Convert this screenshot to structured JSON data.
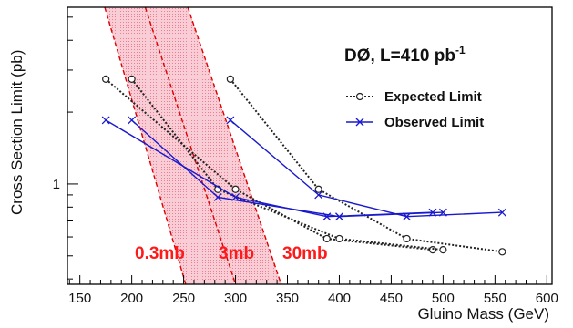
{
  "colors": {
    "band_fill": "#f6b8c4",
    "band_edge": "#e00000",
    "expected": "#222222",
    "observed": "#1a1acc",
    "band_label": "#ff1a1a",
    "axis": "#000000"
  },
  "chart_data": {
    "type": "line",
    "title_main": "DØ, L=410 pb",
    "title_sup": "-1",
    "xlabel": "Gluino Mass (GeV)",
    "ylabel": "Cross Section Limit (pb)",
    "xlim": [
      138,
      605
    ],
    "ylim": [
      0.38,
      5.5
    ],
    "yscale": "log",
    "grid": false,
    "legend_position": "top-right",
    "x_ticks": [
      {
        "value": 150,
        "label": "150"
      },
      {
        "value": 200,
        "label": "200"
      },
      {
        "value": 250,
        "label": "250"
      },
      {
        "value": 300,
        "label": "300"
      },
      {
        "value": 350,
        "label": "350"
      },
      {
        "value": 400,
        "label": "400"
      },
      {
        "value": 450,
        "label": "450"
      },
      {
        "value": 500,
        "label": "500"
      },
      {
        "value": 550,
        "label": "550"
      },
      {
        "value": 600,
        "label": "600"
      }
    ],
    "y_ticks": [
      {
        "value": 1,
        "label": "1"
      }
    ],
    "series": [
      {
        "name": "Expected Limit",
        "segments": [
          {
            "x": [
              175,
              300,
              388,
              490
            ],
            "y": [
              2.75,
              0.95,
              0.59,
              0.53
            ]
          },
          {
            "x": [
              200,
              283,
              400,
              500
            ],
            "y": [
              2.75,
              0.95,
              0.59,
              0.53
            ]
          },
          {
            "x": [
              295,
              380,
              465,
              557
            ],
            "y": [
              2.75,
              0.95,
              0.59,
              0.52
            ]
          }
        ]
      },
      {
        "name": "Observed Limit",
        "segments": [
          {
            "x": [
              175,
              300,
              388,
              490
            ],
            "y": [
              1.85,
              0.88,
              0.73,
              0.76
            ]
          },
          {
            "x": [
              200,
              283,
              400,
              500
            ],
            "y": [
              1.85,
              0.88,
              0.73,
              0.76
            ]
          },
          {
            "x": [
              295,
              380,
              465,
              557
            ],
            "y": [
              1.85,
              0.9,
              0.73,
              0.76
            ]
          }
        ]
      }
    ],
    "bands": [
      {
        "label": "0.3mb",
        "top_mass": 174,
        "bottom_mass": 252
      },
      {
        "label": "3mb",
        "top_mass": 213,
        "bottom_mass": 300
      },
      {
        "label": "30mb",
        "top_mass": 254,
        "bottom_mass": 344
      }
    ]
  }
}
